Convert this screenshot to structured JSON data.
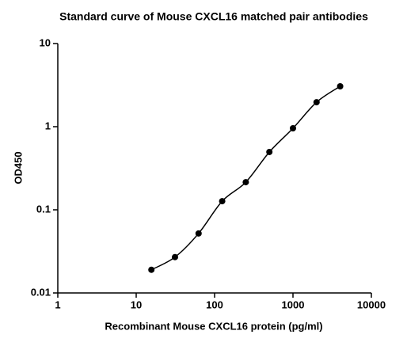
{
  "chart_data": {
    "type": "scatter",
    "title": "Standard curve of Mouse CXCL16 matched pair antibodies",
    "x_label": "Recombinant Mouse CXCL16 protein (pg/ml)",
    "y_label": "OD450",
    "x": [
      15.625,
      31.25,
      62.5,
      125,
      250,
      500,
      1000,
      2000,
      4000
    ],
    "values": [
      0.019,
      0.027,
      0.052,
      0.127,
      0.215,
      0.496,
      0.957,
      1.97,
      3.06
    ],
    "color": "#000000",
    "fit_curve": true,
    "xscale": "log",
    "yscale": "log",
    "xlim": [
      1,
      10000
    ],
    "xticks": [
      1,
      10,
      100,
      1000,
      10000
    ],
    "ylim": [
      0.01,
      10
    ],
    "yticks": [
      0.01,
      0.1,
      1,
      10
    ]
  }
}
